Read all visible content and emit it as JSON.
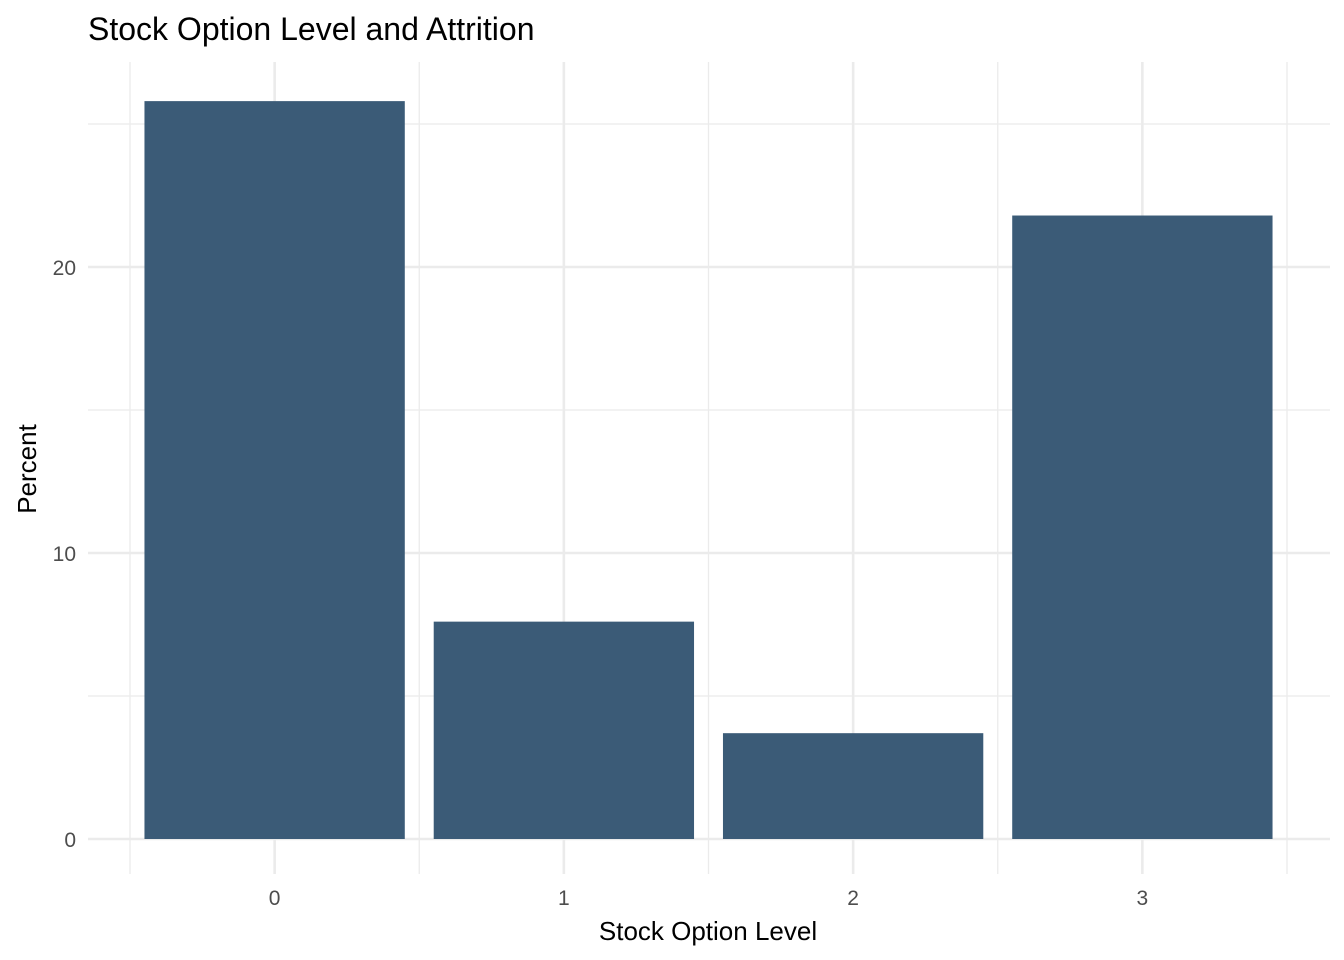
{
  "chart_data": {
    "type": "bar",
    "title": "Stock Option Level and Attrition",
    "xlabel": "Stock Option Level",
    "ylabel": "Percent",
    "categories": [
      "0",
      "1",
      "2",
      "3"
    ],
    "values": [
      25.8,
      7.6,
      3.7,
      21.8
    ],
    "ylim": [
      0,
      25.8
    ],
    "yticks": [
      0,
      10,
      20
    ],
    "yticks_labels": [
      "0",
      "10",
      "20"
    ],
    "bar_color": "#3b5b77",
    "grid": true,
    "legend": "none"
  }
}
